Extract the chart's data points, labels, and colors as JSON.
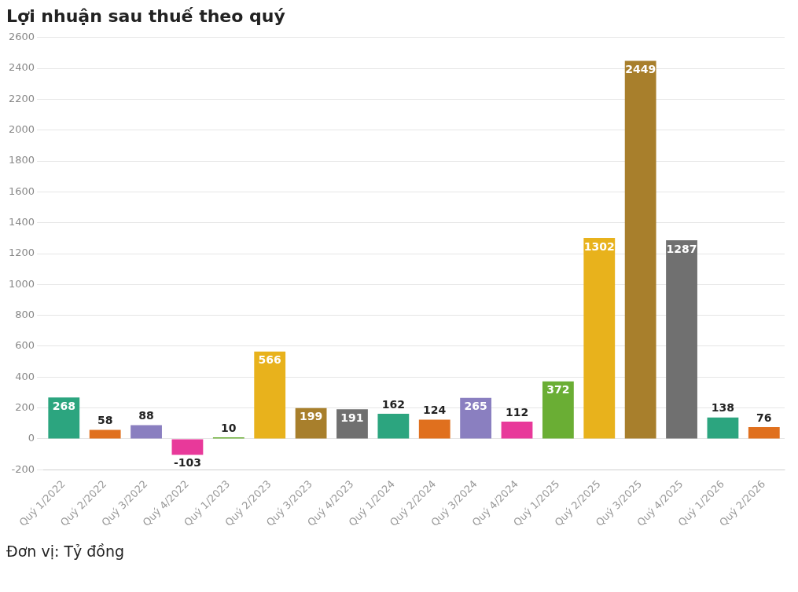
{
  "chart_data": {
    "type": "bar",
    "title": "Lợi nhuận sau thuế theo quý",
    "categories": [
      "Quý 1/2022",
      "Quý 2/2022",
      "Quý 3/2022",
      "Quý 4/2022",
      "Quý 1/2023",
      "Quý 2/2023",
      "Quý 3/2023",
      "Quý 4/2023",
      "Quý 1/2024",
      "Quý 2/2024",
      "Quý 3/2024",
      "Quý 4/2024",
      "Quý 1/2025",
      "Quý 2/2025",
      "Quý 3/2025",
      "Quý 4/2025",
      "Quý 1/2026",
      "Quý 2/2026"
    ],
    "values": [
      268,
      58,
      88,
      -103,
      10,
      566,
      199,
      191,
      162,
      124,
      265,
      112,
      372,
      1302,
      2449,
      1287,
      138,
      76
    ],
    "colors": [
      "#2ca57f",
      "#e0701e",
      "#8a7fc0",
      "#e8399a",
      "#6aae34",
      "#e8b21c",
      "#a87f2c",
      "#707070",
      "#2ca57f",
      "#e0701e",
      "#8a7fc0",
      "#e8399a",
      "#6aae34",
      "#e8b21c",
      "#a87f2c",
      "#707070",
      "#2ca57f",
      "#e0701e"
    ],
    "ylim": [
      -200,
      2600
    ],
    "yticks": [
      -200,
      0,
      200,
      400,
      600,
      800,
      1000,
      1200,
      1400,
      1600,
      1800,
      2000,
      2200,
      2400,
      2600
    ],
    "grid": "y",
    "legend": false,
    "data_labels": true,
    "annotations": [
      "Đơn vị: Tỷ đồng"
    ]
  }
}
